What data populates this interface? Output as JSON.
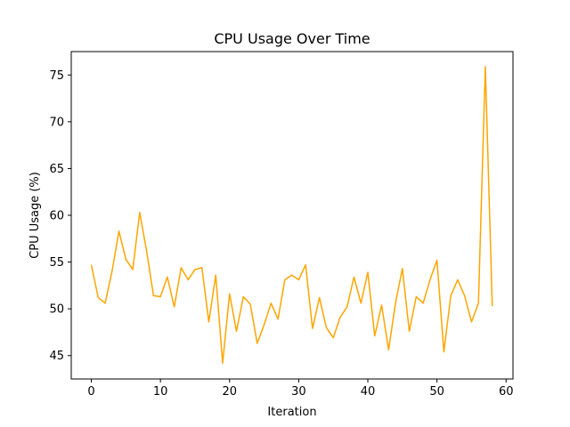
{
  "chart_data": {
    "type": "line",
    "title": "CPU Usage Over Time",
    "xlabel": "Iteration",
    "ylabel": "CPU Usage (%)",
    "xlim": [
      -2.9,
      61
    ],
    "ylim": [
      42.5,
      77.5
    ],
    "xticks": [
      0,
      10,
      20,
      30,
      40,
      50,
      60
    ],
    "yticks": [
      45,
      50,
      55,
      60,
      65,
      70,
      75
    ],
    "grid": false,
    "line_color": "#ffa500",
    "series": [
      {
        "x": [
          0,
          1,
          2,
          3,
          4,
          5,
          6,
          7,
          8,
          9,
          10,
          11,
          12,
          13,
          14,
          15,
          16,
          17,
          18,
          19,
          20,
          21,
          22,
          23,
          24,
          25,
          26,
          27,
          28,
          29,
          30,
          31,
          32,
          33,
          34,
          35,
          36,
          37,
          38,
          39,
          40,
          41,
          42,
          43,
          44,
          45,
          46,
          47,
          48,
          49,
          50,
          51,
          52,
          53,
          54,
          55,
          56,
          57,
          58
        ],
        "values": [
          54.7,
          51.2,
          50.6,
          54.0,
          58.3,
          55.3,
          54.2,
          60.3,
          56.2,
          51.4,
          51.3,
          53.4,
          50.2,
          54.4,
          53.1,
          54.2,
          54.4,
          48.6,
          53.6,
          44.2,
          51.6,
          47.6,
          51.3,
          50.5,
          46.3,
          48.3,
          50.6,
          48.9,
          53.1,
          53.6,
          53.1,
          54.7,
          47.9,
          51.2,
          48.0,
          46.9,
          49.1,
          50.2,
          53.4,
          50.6,
          53.9,
          47.1,
          50.4,
          45.6,
          50.6,
          54.3,
          47.6,
          51.3,
          50.6,
          53.1,
          55.2,
          45.4,
          51.4,
          53.1,
          51.4,
          48.6,
          50.6,
          75.9,
          50.3
        ]
      }
    ]
  }
}
